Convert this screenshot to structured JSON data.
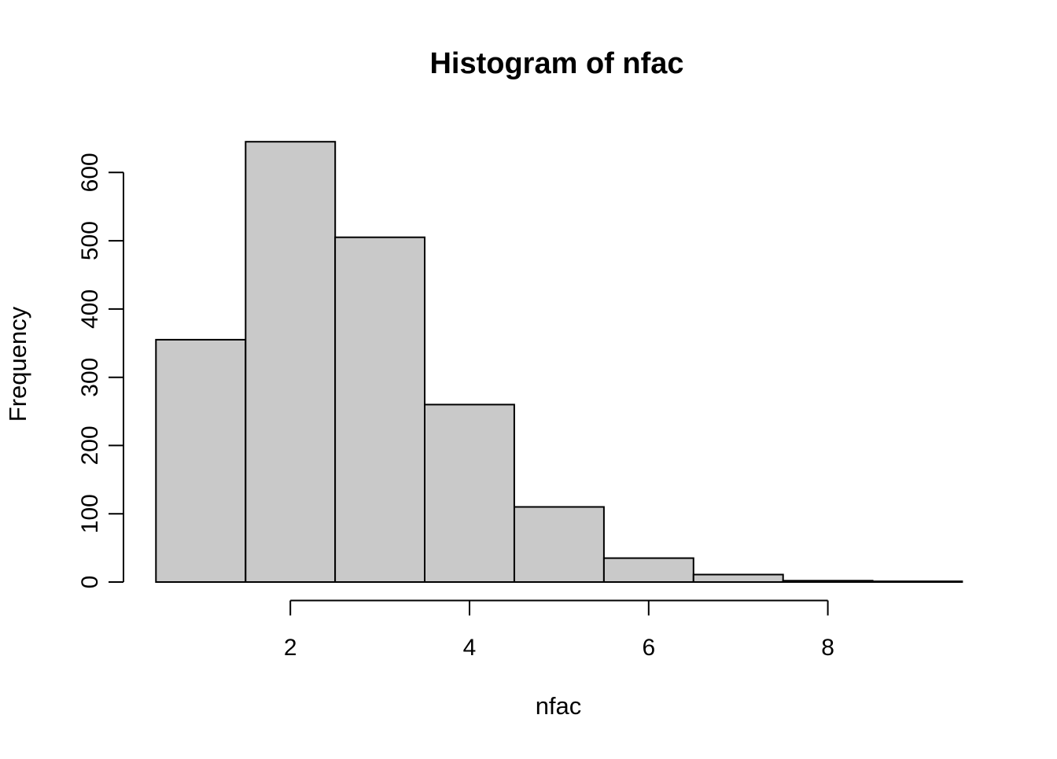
{
  "figure": {
    "background": "#ffffff"
  },
  "colors": {
    "bar_fill": "#c9c9c9",
    "bar_stroke": "#000000",
    "axis": "#000000",
    "text": "#000000"
  },
  "chart_data": {
    "type": "bar",
    "subtype": "histogram",
    "title": "Histogram of nfac",
    "xlabel": "nfac",
    "ylabel": "Frequency",
    "bin_edges": [
      0.5,
      1.5,
      2.5,
      3.5,
      4.5,
      5.5,
      6.5,
      7.5,
      8.5,
      9.5
    ],
    "counts": [
      355,
      645,
      505,
      260,
      110,
      35,
      11,
      2,
      1
    ],
    "x_ticks": [
      2,
      4,
      6,
      8
    ],
    "y_ticks": [
      0,
      100,
      200,
      300,
      400,
      500,
      600
    ],
    "xlim": [
      0.5,
      9.5
    ],
    "ylim": [
      0,
      600
    ],
    "grid": false,
    "legend": "none"
  }
}
